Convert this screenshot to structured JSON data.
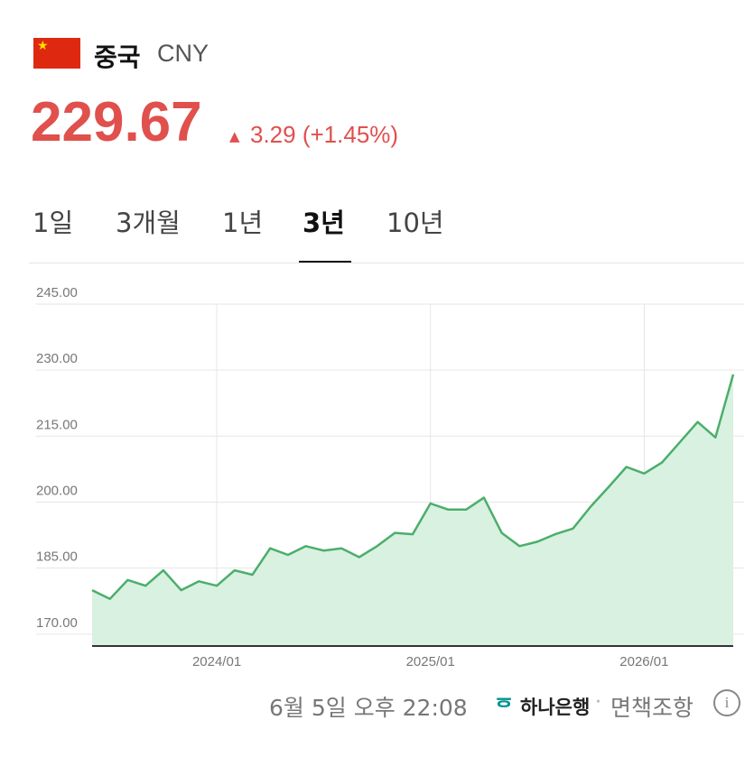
{
  "header": {
    "country": "중국",
    "currency": "CNY"
  },
  "price": {
    "value": "229.67",
    "change": "3.29 (+1.45%)"
  },
  "tabs": {
    "items": [
      "1일",
      "3개월",
      "1년",
      "3년",
      "10년"
    ],
    "selected": 3
  },
  "chart_data": {
    "type": "area",
    "categories": [
      null,
      null,
      null,
      null,
      null,
      null,
      null,
      "2024/01",
      null,
      null,
      null,
      null,
      null,
      null,
      null,
      null,
      null,
      null,
      null,
      "2025/01",
      null,
      null,
      null,
      null,
      null,
      null,
      null,
      null,
      null,
      null,
      null,
      "2026/01",
      null,
      null,
      null,
      null,
      null
    ],
    "series": [
      {
        "name": "CNY",
        "color": "#4cae6b",
        "values": [
          180,
          178,
          182.3,
          181,
          184.5,
          180,
          182,
          181,
          184.5,
          183.5,
          189.5,
          188,
          190,
          189,
          189.5,
          187.5,
          190,
          193,
          192.7,
          199.7,
          198.3,
          198.3,
          201,
          193,
          190,
          191,
          192.7,
          194,
          199,
          203.4,
          208,
          206.5,
          209,
          213.6,
          218.2,
          214.7,
          229
        ]
      }
    ],
    "ylim": [
      167.3,
      245
    ],
    "yticks": [
      {
        "value": 170,
        "label": "170.00"
      },
      {
        "value": 185,
        "label": "185.00"
      },
      {
        "value": 200,
        "label": "200.00"
      },
      {
        "value": 215,
        "label": "215.00"
      },
      {
        "value": 230,
        "label": "230.00"
      },
      {
        "value": 245,
        "label": "245.00"
      }
    ],
    "grid": true
  },
  "footer": {
    "timestamp": "6월 5일 오후 22:08",
    "bank": "하나은행",
    "disclaimer": "면책조항"
  }
}
